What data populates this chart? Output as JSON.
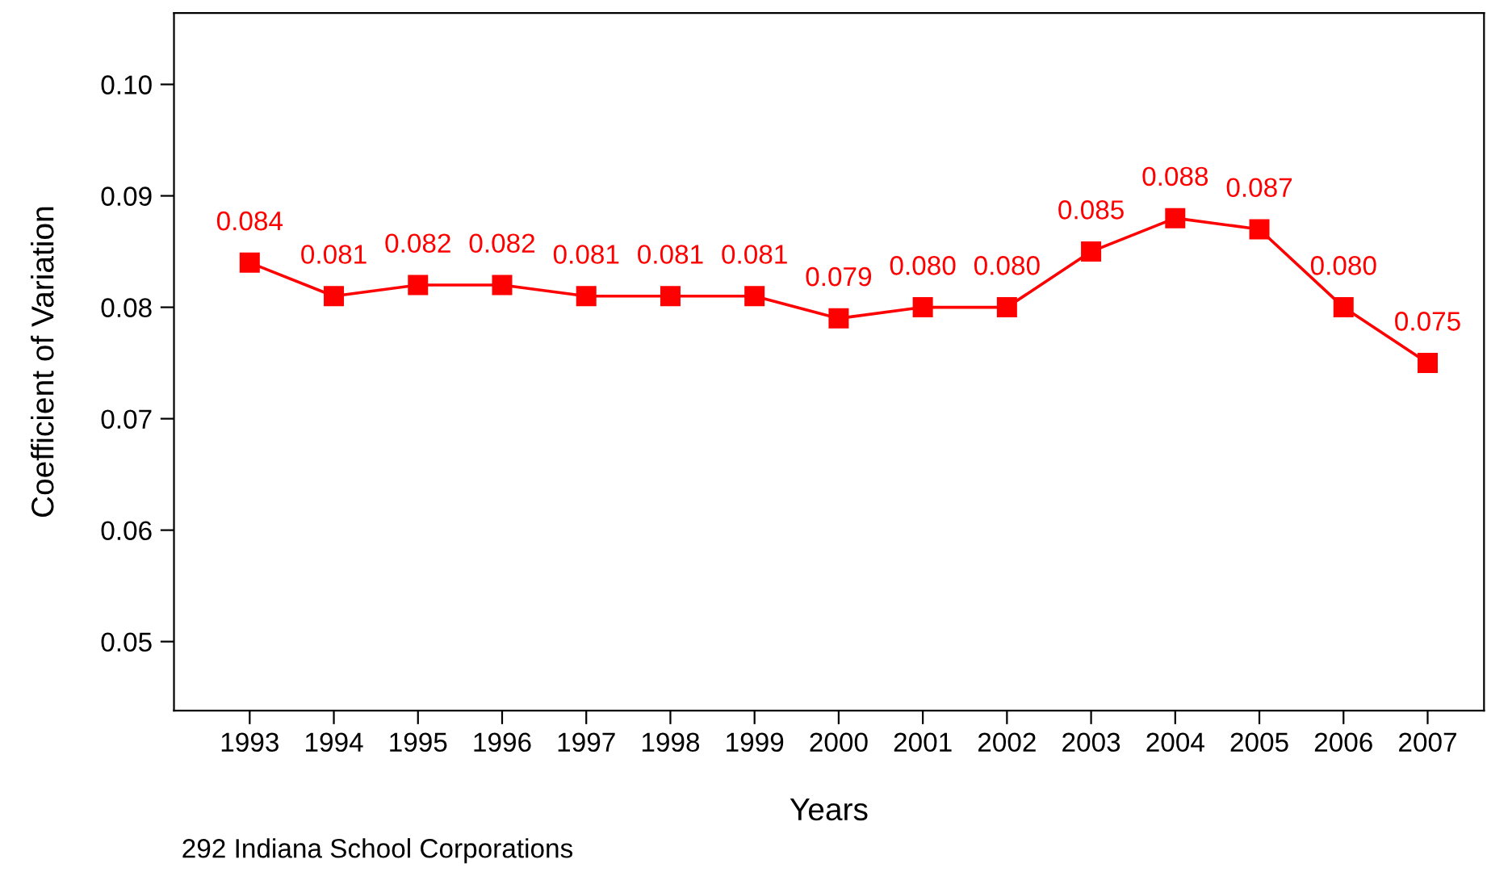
{
  "chart_data": {
    "type": "line",
    "xlabel": "Years",
    "ylabel": "Coefficient of Variation",
    "x": [
      1993,
      1994,
      1995,
      1996,
      1997,
      1998,
      1999,
      2000,
      2001,
      2002,
      2003,
      2004,
      2005,
      2006,
      2007
    ],
    "series": [
      {
        "color": "#ff0000",
        "values": [
          0.084,
          0.081,
          0.082,
          0.082,
          0.081,
          0.081,
          0.081,
          0.079,
          0.08,
          0.08,
          0.085,
          0.088,
          0.087,
          0.08,
          0.075
        ]
      }
    ],
    "value_labels": [
      "0.084",
      "0.081",
      "0.082",
      "0.082",
      "0.081",
      "0.081",
      "0.081",
      "0.079",
      "0.080",
      "0.080",
      "0.085",
      "0.088",
      "0.087",
      "0.080",
      "0.075"
    ],
    "xlim": [
      1992.1,
      2007.67
    ],
    "xticks": [
      1993,
      1994,
      1995,
      1996,
      1997,
      1998,
      1999,
      2000,
      2001,
      2002,
      2003,
      2004,
      2005,
      2006,
      2007
    ],
    "ylim": [
      0.0438,
      0.1064
    ],
    "yticks": [
      {
        "value": 0.05,
        "label": "0.05"
      },
      {
        "value": 0.06,
        "label": "0.06"
      },
      {
        "value": 0.07,
        "label": "0.07"
      },
      {
        "value": 0.08,
        "label": "0.08"
      },
      {
        "value": 0.09,
        "label": "0.09"
      },
      {
        "value": 0.1,
        "label": "0.10"
      }
    ],
    "marker": "square",
    "line_style": "solid",
    "grid": false,
    "legend": false,
    "annotations": [
      "292 Indiana School Corporations"
    ]
  }
}
